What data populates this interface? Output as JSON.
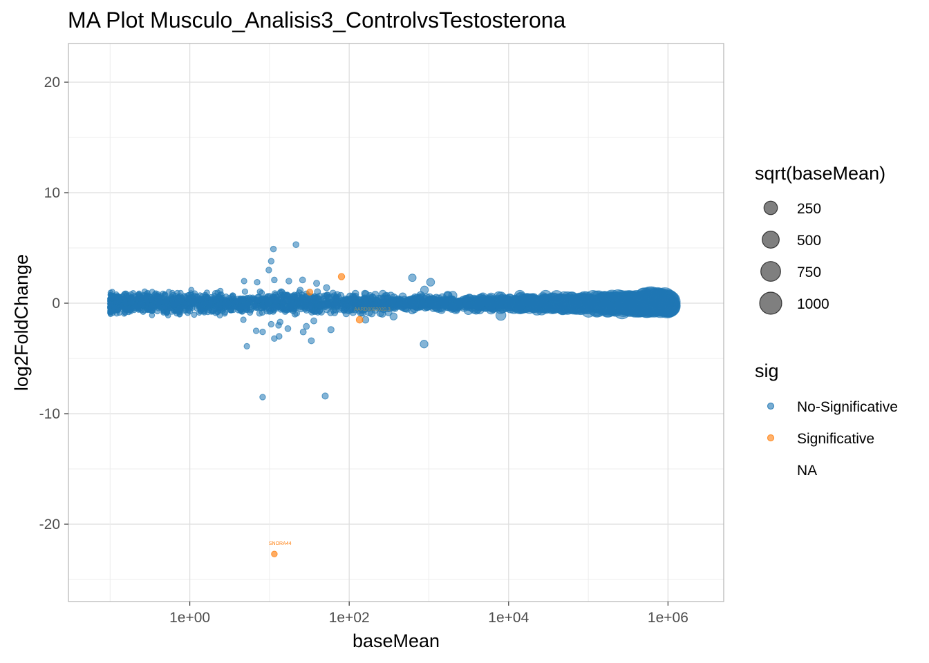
{
  "chart_data": {
    "type": "scatter",
    "title": "MA Plot Musculo_Analisis3_ControlvsTestosterona",
    "xlabel": "baseMean",
    "ylabel": "log2FoldChange",
    "x_scale": "log10",
    "xlim": [
      0.03,
      5000000
    ],
    "ylim": [
      -27,
      23.5
    ],
    "x_ticks": [
      1,
      100,
      10000,
      1000000
    ],
    "x_tick_labels": [
      "1e+00",
      "1e+02",
      "1e+04",
      "1e+06"
    ],
    "y_ticks": [
      -20,
      -10,
      0,
      10,
      20
    ],
    "y_tick_labels": [
      "-20",
      "-10",
      "0",
      "10",
      "20"
    ],
    "grid": true,
    "legend_position": "right",
    "colors": {
      "no_sig": "#1f77b4",
      "sig": "#ff7f0e"
    },
    "size_legend": {
      "title": "sqrt(baseMean)",
      "entries": [
        {
          "label": "250",
          "value": 250
        },
        {
          "label": "500",
          "value": 500
        },
        {
          "label": "750",
          "value": 750
        },
        {
          "label": "1000",
          "value": 1000
        }
      ]
    },
    "color_legend": {
      "title": "sig",
      "entries": [
        {
          "label": "No-Significative",
          "color": "#1f77b4"
        },
        {
          "label": "Significative",
          "color": "#ff7f0e"
        },
        {
          "label": "NA",
          "color": ""
        }
      ]
    },
    "series": [
      {
        "name": "No-Significative",
        "band": {
          "x_min": 0.1,
          "x_max": 1050000,
          "spread": 1.0,
          "note_count": 2600
        },
        "points": [
          [
            11.2,
            4.9
          ],
          [
            21.5,
            5.3
          ],
          [
            10.5,
            3.8
          ],
          [
            9.8,
            3.0
          ],
          [
            620,
            2.3
          ],
          [
            1050,
            1.9
          ],
          [
            880,
            1.2
          ],
          [
            7,
            1.9
          ],
          [
            4.8,
            2.0
          ],
          [
            11.5,
            2.1
          ],
          [
            17.5,
            2.0
          ],
          [
            26,
            2.1
          ],
          [
            39,
            1.8
          ],
          [
            52,
            1.4
          ],
          [
            5.2,
            -3.9
          ],
          [
            8.2,
            -8.5
          ],
          [
            50,
            -8.4
          ],
          [
            870,
            -3.7
          ],
          [
            11.5,
            -3.2
          ],
          [
            13.2,
            -3.0
          ],
          [
            26.5,
            -2.6
          ],
          [
            33.5,
            -3.4
          ],
          [
            59,
            -2.4
          ],
          [
            6.8,
            -2.5
          ],
          [
            8.2,
            -2.6
          ],
          [
            10.5,
            -1.9
          ],
          [
            13.6,
            -1.7
          ],
          [
            17,
            -2.3
          ],
          [
            29,
            -2.1
          ],
          [
            13,
            -2.0
          ],
          [
            4.7,
            -1.5
          ],
          [
            36,
            -1.6
          ],
          [
            160,
            -1.5
          ],
          [
            360,
            -1.2
          ],
          [
            8000,
            -1.1
          ]
        ]
      },
      {
        "name": "Significative",
        "points": [
          {
            "x": 11.5,
            "y": -22.7,
            "label": "SNORA44"
          },
          {
            "x": 80,
            "y": 2.4,
            "label": ""
          },
          {
            "x": 135,
            "y": -1.5,
            "label": "AARD0002020.3"
          },
          {
            "x": 32,
            "y": 1.0,
            "label": ""
          }
        ]
      }
    ]
  }
}
